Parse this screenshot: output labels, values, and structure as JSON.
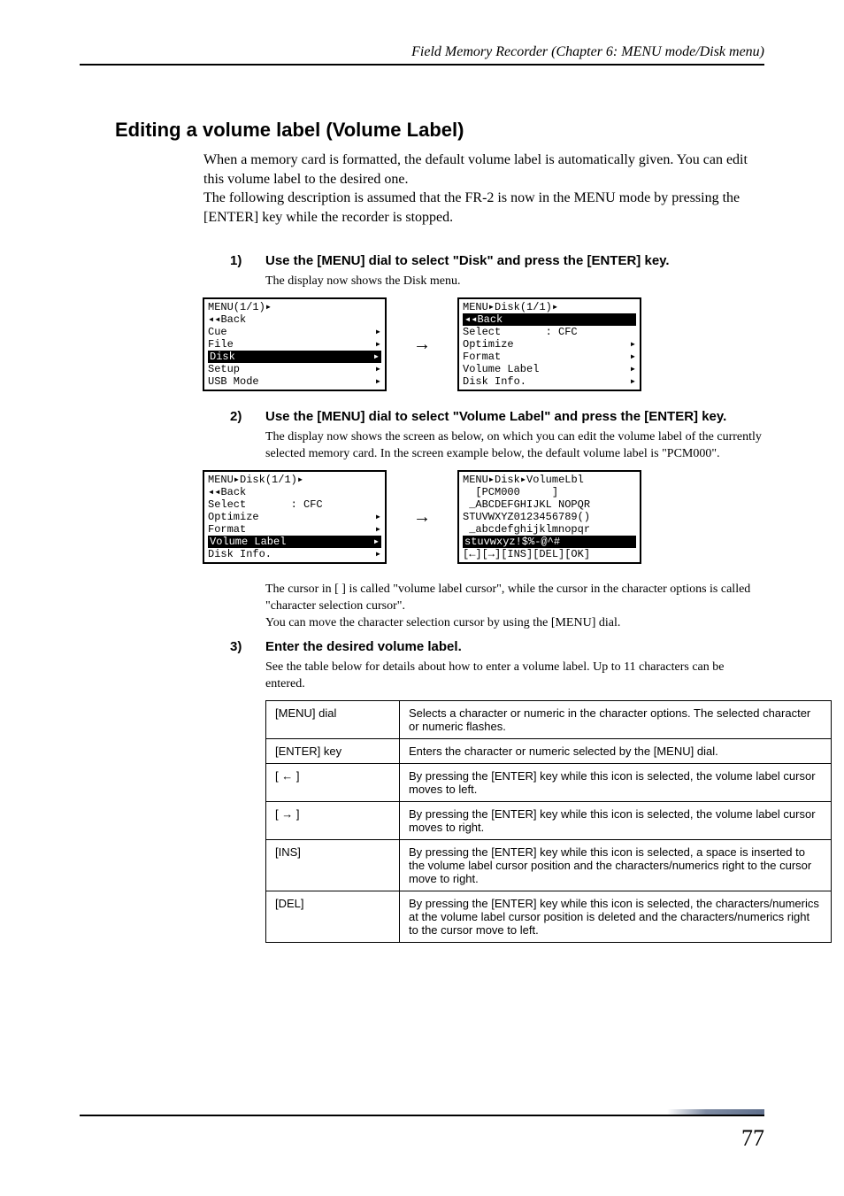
{
  "header": "Field Memory Recorder (Chapter 6: MENU mode/Disk menu)",
  "section_title": "Editing a volume label (Volume Label)",
  "intro": "When a memory card is formatted, the default volume label is automatically given. You can edit this volume label to the desired one.\nThe following description is assumed that the FR-2 is now in the MENU mode by pressing the [ENTER] key while the recorder is stopped.",
  "steps": [
    {
      "num": "1)",
      "title": "Use the [MENU] dial to select \"Disk\" and press the [ENTER] key.",
      "desc": "The display now shows the Disk menu.",
      "lcd_left": {
        "title": "MENU(1/1)▸",
        "rows": [
          {
            "text": "◂◂Back",
            "sel": false,
            "arrow": false
          },
          {
            "text": "Cue",
            "sel": false,
            "arrow": true
          },
          {
            "text": "File",
            "sel": false,
            "arrow": true
          },
          {
            "text": "Disk",
            "sel": true,
            "arrow": true
          },
          {
            "text": "Setup",
            "sel": false,
            "arrow": true
          },
          {
            "text": "USB Mode",
            "sel": false,
            "arrow": true
          }
        ]
      },
      "lcd_right": {
        "title": "MENU▸Disk(1/1)▸",
        "rows": [
          {
            "text": "◂◂Back",
            "sel": true,
            "arrow": false
          },
          {
            "text": "Select       : CFC",
            "sel": false,
            "arrow": false
          },
          {
            "text": "Optimize",
            "sel": false,
            "arrow": true
          },
          {
            "text": "Format",
            "sel": false,
            "arrow": true
          },
          {
            "text": "Volume Label",
            "sel": false,
            "arrow": true
          },
          {
            "text": "Disk Info.",
            "sel": false,
            "arrow": true
          }
        ]
      }
    },
    {
      "num": "2)",
      "title": "Use the [MENU] dial to select \"Volume Label\" and press the [ENTER] key.",
      "desc": "The display now shows the screen as below, on which you can edit the volume label of the currently selected memory card. In the screen example below, the default volume label is \"PCM000\".",
      "lcd_left": {
        "title": "MENU▸Disk(1/1)▸",
        "rows": [
          {
            "text": "◂◂Back",
            "sel": false,
            "arrow": false
          },
          {
            "text": "Select       : CFC",
            "sel": false,
            "arrow": false
          },
          {
            "text": "Optimize",
            "sel": false,
            "arrow": true
          },
          {
            "text": "Format",
            "sel": false,
            "arrow": true
          },
          {
            "text": "Volume Label",
            "sel": true,
            "arrow": true
          },
          {
            "text": "Disk Info.",
            "sel": false,
            "arrow": true
          }
        ]
      },
      "lcd_right": {
        "title": "MENU▸Disk▸VolumeLbl",
        "rows": [
          {
            "text": "  [PCM000     ]",
            "sel": false,
            "arrow": false
          },
          {
            "text": " _ABCDEFGHIJKL NOPQR",
            "sel": false,
            "arrow": false
          },
          {
            "text": "STUVWXYZ0123456789()",
            "sel": false,
            "arrow": false
          },
          {
            "text": " _abcdefghijklmnopqr",
            "sel": false,
            "arrow": false
          },
          {
            "text": "stuvwxyz!$%-@^#",
            "sel": true,
            "arrow": false
          },
          {
            "text": "[←][→][INS][DEL][OK]",
            "sel": false,
            "arrow": false
          }
        ]
      },
      "desc2": "The cursor in [  ] is called \"volume label cursor\", while the cursor in the character options is called \"character selection cursor\".\nYou can move the character selection cursor by using the [MENU] dial."
    },
    {
      "num": "3)",
      "title": "Enter the desired volume label.",
      "desc": "See the table below for details about how to enter a volume label. Up to 11 characters can be entered."
    }
  ],
  "table": {
    "rows": [
      {
        "key": "[MENU] dial",
        "val": "Selects a character or numeric in the character options. The selected character or numeric flashes."
      },
      {
        "key": "[ENTER] key",
        "val": "Enters the character or numeric selected by the [MENU] dial."
      },
      {
        "key": "[ ← ]",
        "val": "By pressing the [ENTER] key while this icon is selected, the volume label cursor moves to left."
      },
      {
        "key": "[ → ]",
        "val": "By pressing the [ENTER] key while this icon is selected, the volume label cursor moves to right."
      },
      {
        "key": "[INS]",
        "val": "By pressing the [ENTER] key while this icon is selected, a space is inserted to the volume label cursor position and the characters/numerics right to the cursor move to right."
      },
      {
        "key": "[DEL]",
        "val": "By pressing the [ENTER] key while this icon is selected, the characters/numerics at the volume label cursor position is deleted and the characters/numerics right to the cursor move to left."
      }
    ]
  },
  "page_number": "77"
}
